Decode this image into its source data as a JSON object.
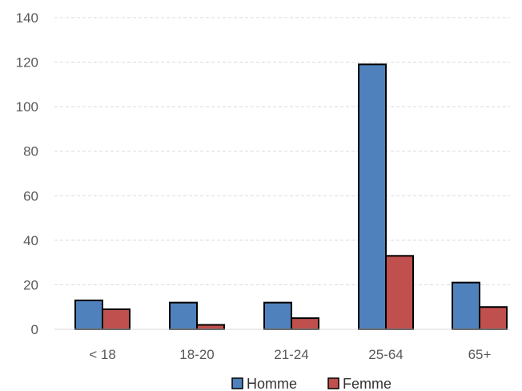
{
  "chart_data": {
    "type": "bar",
    "categories": [
      "< 18",
      "18-20",
      "21-24",
      "25-64",
      "65+"
    ],
    "series": [
      {
        "name": "Homme",
        "values": [
          13,
          12,
          12,
          119,
          21
        ],
        "color": "#4F81BD"
      },
      {
        "name": "Femme",
        "values": [
          9,
          2,
          5,
          33,
          10
        ],
        "color": "#C0504D"
      }
    ],
    "ylim": [
      0,
      140
    ],
    "yticks": [
      0,
      20,
      40,
      60,
      80,
      100,
      120,
      140
    ],
    "grid": true,
    "legend": "bottom-center"
  }
}
